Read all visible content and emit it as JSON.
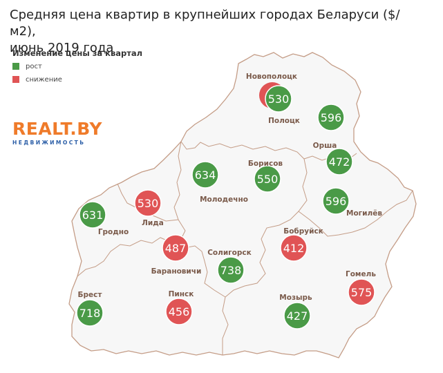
{
  "title_line1": "Средняя цена квартир в крупнейших городах Беларуси ($/м2),",
  "title_line2": "июнь 2019 года",
  "legend": {
    "title": "Изменение цены за квартал",
    "items": [
      {
        "label": "рост",
        "color": "#4a9a47"
      },
      {
        "label": "снижение",
        "color": "#e05455"
      }
    ]
  },
  "logo": {
    "main": "REALT.BY",
    "sub": "НЕДВИЖИМОСТЬ"
  },
  "colors": {
    "up": "#4a9a47",
    "down": "#e05455",
    "land": "#f7f7f7",
    "border": "#c49c86"
  },
  "cities": [
    {
      "name": "Новополоцк",
      "value": "530",
      "change": "up",
      "shadow_change": "down"
    },
    {
      "name": "Полоцк",
      "value": "596",
      "change": "up"
    },
    {
      "name": "Орша",
      "value": "472",
      "change": "up"
    },
    {
      "name": "Борисов",
      "value": "550",
      "change": "up"
    },
    {
      "name": "Молодечно",
      "value": "634",
      "change": "up"
    },
    {
      "name": "Могилёв",
      "value": "596",
      "change": "up"
    },
    {
      "name": "Гродно",
      "value": "631",
      "change": "up"
    },
    {
      "name": "Лида",
      "value": "530",
      "change": "down"
    },
    {
      "name": "Бобруйск",
      "value": "412",
      "change": "down"
    },
    {
      "name": "Барановичи",
      "value": "487",
      "change": "down"
    },
    {
      "name": "Солигорск",
      "value": "738",
      "change": "up"
    },
    {
      "name": "Гомель",
      "value": "575",
      "change": "down"
    },
    {
      "name": "Брест",
      "value": "718",
      "change": "up"
    },
    {
      "name": "Пинск",
      "value": "456",
      "change": "down"
    },
    {
      "name": "Мозырь",
      "value": "427",
      "change": "up"
    }
  ]
}
